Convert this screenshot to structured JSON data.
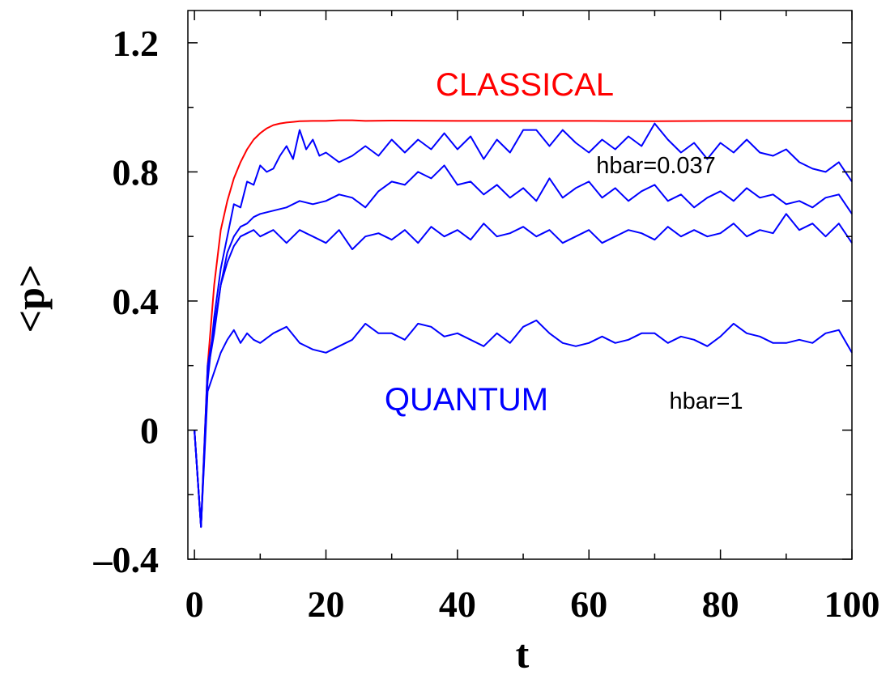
{
  "chart_data": {
    "type": "line",
    "xlabel": "t",
    "ylabel": "<p>",
    "xlim": [
      -1,
      100
    ],
    "ylim": [
      -0.4,
      1.3
    ],
    "xticks": [
      0,
      20,
      40,
      60,
      80,
      100
    ],
    "yticks": [
      -0.4,
      0,
      0.4,
      0.8,
      1.2
    ],
    "xtick_labels": [
      "0",
      "20",
      "40",
      "60",
      "80",
      "100"
    ],
    "ytick_labels": [
      "–0.4",
      "0",
      "0.4",
      "0.8",
      "1.2"
    ],
    "grid": false,
    "annotations": {
      "classical": "CLASSICAL",
      "quantum": "QUANTUM",
      "hbar_small": "hbar=0.037",
      "hbar_large": "hbar=1"
    },
    "colors": {
      "classical": "#ff0000",
      "quantum": "#0000ff",
      "axes": "#000000"
    },
    "series": [
      {
        "color": "#ff0000",
        "x": [
          0,
          1,
          2,
          3,
          4,
          5,
          6,
          7,
          8,
          9,
          10,
          11,
          12,
          13,
          14,
          15,
          16,
          18,
          20,
          22,
          24,
          26,
          30,
          40,
          50,
          60,
          70,
          80,
          90,
          100
        ],
        "y": [
          0,
          -0.3,
          0.2,
          0.45,
          0.62,
          0.71,
          0.78,
          0.83,
          0.87,
          0.9,
          0.92,
          0.935,
          0.945,
          0.95,
          0.953,
          0.955,
          0.957,
          0.958,
          0.958,
          0.96,
          0.96,
          0.958,
          0.959,
          0.958,
          0.958,
          0.958,
          0.957,
          0.958,
          0.958,
          0.958
        ]
      },
      {
        "color": "#0000ff",
        "x": [
          0,
          1,
          2,
          3,
          4,
          5,
          6,
          7,
          8,
          9,
          10,
          11,
          12,
          13,
          14,
          15,
          16,
          17,
          18,
          19,
          20,
          22,
          24,
          26,
          28,
          30,
          32,
          34,
          36,
          38,
          40,
          42,
          44,
          46,
          48,
          50,
          52,
          54,
          56,
          58,
          60,
          62,
          64,
          66,
          68,
          70,
          72,
          74,
          76,
          78,
          80,
          82,
          84,
          86,
          88,
          90,
          92,
          94,
          96,
          98,
          100
        ],
        "y": [
          0,
          -0.3,
          0.15,
          0.35,
          0.5,
          0.6,
          0.7,
          0.69,
          0.77,
          0.76,
          0.82,
          0.8,
          0.81,
          0.85,
          0.88,
          0.84,
          0.93,
          0.87,
          0.9,
          0.85,
          0.86,
          0.83,
          0.85,
          0.88,
          0.85,
          0.9,
          0.86,
          0.9,
          0.87,
          0.92,
          0.87,
          0.91,
          0.84,
          0.9,
          0.86,
          0.93,
          0.93,
          0.88,
          0.93,
          0.89,
          0.86,
          0.9,
          0.87,
          0.91,
          0.88,
          0.95,
          0.9,
          0.86,
          0.89,
          0.84,
          0.89,
          0.86,
          0.9,
          0.86,
          0.85,
          0.87,
          0.83,
          0.81,
          0.8,
          0.83,
          0.77
        ]
      },
      {
        "color": "#0000ff",
        "x": [
          0,
          1,
          2,
          3,
          4,
          5,
          6,
          7,
          8,
          9,
          10,
          12,
          14,
          16,
          18,
          20,
          22,
          24,
          26,
          28,
          30,
          32,
          34,
          36,
          38,
          40,
          42,
          44,
          46,
          48,
          50,
          52,
          54,
          56,
          58,
          60,
          62,
          64,
          66,
          68,
          70,
          72,
          74,
          76,
          78,
          80,
          82,
          84,
          86,
          88,
          90,
          92,
          94,
          96,
          98,
          100
        ],
        "y": [
          0,
          -0.3,
          0.18,
          0.3,
          0.45,
          0.55,
          0.6,
          0.63,
          0.64,
          0.66,
          0.67,
          0.68,
          0.69,
          0.71,
          0.7,
          0.71,
          0.73,
          0.72,
          0.69,
          0.74,
          0.77,
          0.76,
          0.8,
          0.78,
          0.82,
          0.76,
          0.77,
          0.73,
          0.76,
          0.72,
          0.75,
          0.71,
          0.78,
          0.72,
          0.75,
          0.77,
          0.72,
          0.75,
          0.71,
          0.74,
          0.76,
          0.71,
          0.73,
          0.69,
          0.72,
          0.74,
          0.71,
          0.75,
          0.72,
          0.73,
          0.7,
          0.71,
          0.69,
          0.72,
          0.73,
          0.67
        ]
      },
      {
        "color": "#0000ff",
        "x": [
          0,
          1,
          2,
          3,
          4,
          5,
          6,
          7,
          8,
          9,
          10,
          12,
          14,
          16,
          18,
          20,
          22,
          24,
          26,
          28,
          30,
          32,
          34,
          36,
          38,
          40,
          42,
          44,
          46,
          48,
          50,
          52,
          54,
          56,
          58,
          60,
          62,
          64,
          66,
          68,
          70,
          72,
          74,
          76,
          78,
          80,
          82,
          84,
          86,
          88,
          90,
          92,
          94,
          96,
          98,
          100
        ],
        "y": [
          0,
          -0.3,
          0.2,
          0.32,
          0.45,
          0.52,
          0.57,
          0.6,
          0.61,
          0.62,
          0.6,
          0.62,
          0.58,
          0.62,
          0.6,
          0.58,
          0.62,
          0.56,
          0.6,
          0.61,
          0.59,
          0.62,
          0.58,
          0.63,
          0.6,
          0.62,
          0.59,
          0.64,
          0.6,
          0.61,
          0.63,
          0.6,
          0.62,
          0.58,
          0.6,
          0.62,
          0.58,
          0.6,
          0.62,
          0.61,
          0.59,
          0.63,
          0.6,
          0.62,
          0.6,
          0.61,
          0.64,
          0.6,
          0.62,
          0.61,
          0.67,
          0.62,
          0.64,
          0.6,
          0.64,
          0.58
        ]
      },
      {
        "color": "#0000ff",
        "x": [
          0,
          1,
          2,
          3,
          4,
          5,
          6,
          7,
          8,
          9,
          10,
          12,
          14,
          16,
          18,
          20,
          22,
          24,
          26,
          28,
          30,
          32,
          34,
          36,
          38,
          40,
          42,
          44,
          46,
          48,
          50,
          52,
          54,
          56,
          58,
          60,
          62,
          64,
          66,
          68,
          70,
          72,
          74,
          76,
          78,
          80,
          82,
          84,
          86,
          88,
          90,
          92,
          94,
          96,
          98,
          100
        ],
        "y": [
          0,
          -0.3,
          0.12,
          0.18,
          0.24,
          0.28,
          0.31,
          0.27,
          0.3,
          0.28,
          0.27,
          0.3,
          0.32,
          0.27,
          0.25,
          0.24,
          0.26,
          0.28,
          0.33,
          0.3,
          0.3,
          0.28,
          0.33,
          0.32,
          0.29,
          0.3,
          0.28,
          0.26,
          0.3,
          0.27,
          0.32,
          0.34,
          0.3,
          0.27,
          0.26,
          0.27,
          0.29,
          0.27,
          0.28,
          0.3,
          0.3,
          0.27,
          0.29,
          0.28,
          0.26,
          0.29,
          0.33,
          0.3,
          0.29,
          0.27,
          0.27,
          0.28,
          0.27,
          0.3,
          0.31,
          0.24
        ]
      }
    ]
  }
}
